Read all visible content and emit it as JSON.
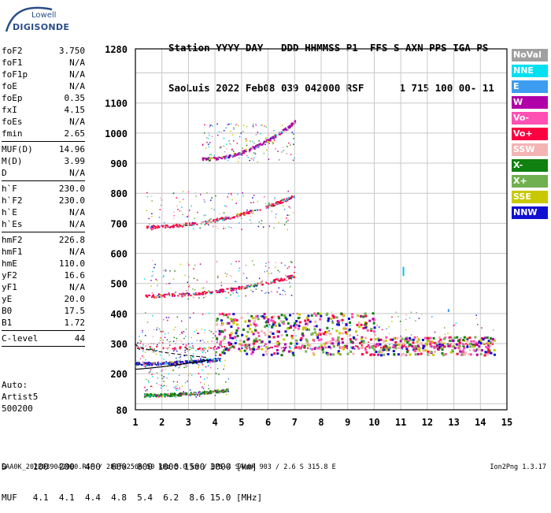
{
  "logo": {
    "line1": "Lowell",
    "line2": "DIGISONDE"
  },
  "header": {
    "line1": "Station YYYY DAY   DDD HHMMSS P1  FFS S AXN PPS IGA PS",
    "line2": "SaoLuis 2022 Feb08 039 042000 RSF      1 715 100 00- 11"
  },
  "params": [
    {
      "name": "foF2",
      "value": "3.750"
    },
    {
      "name": "foF1",
      "value": "N/A"
    },
    {
      "name": "foF1p",
      "value": "N/A"
    },
    {
      "name": "foE",
      "value": "N/A"
    },
    {
      "name": "foEp",
      "value": "0.35"
    },
    {
      "name": "fxI",
      "value": "4.15"
    },
    {
      "name": "foEs",
      "value": "N/A"
    },
    {
      "name": "fmin",
      "value": "2.65"
    },
    {
      "sep": true
    },
    {
      "name": "MUF(D)",
      "value": "14.96"
    },
    {
      "name": "M(D)",
      "value": "3.99"
    },
    {
      "name": "D",
      "value": "N/A"
    },
    {
      "sep": true
    },
    {
      "name": "h`F",
      "value": "230.0"
    },
    {
      "name": "h`F2",
      "value": "230.0"
    },
    {
      "name": "h`E",
      "value": "N/A"
    },
    {
      "name": "h`Es",
      "value": "N/A"
    },
    {
      "sep": true
    },
    {
      "name": "hmF2",
      "value": "226.8"
    },
    {
      "name": "hmF1",
      "value": "N/A"
    },
    {
      "name": "hmE",
      "value": "110.0"
    },
    {
      "name": "yF2",
      "value": "16.6"
    },
    {
      "name": "yF1",
      "value": "N/A"
    },
    {
      "name": "yE",
      "value": "20.0"
    },
    {
      "name": "B0",
      "value": "17.5"
    },
    {
      "name": "B1",
      "value": "1.72"
    },
    {
      "sep": true
    },
    {
      "name": "C-level",
      "value": "44"
    },
    {
      "sep": true
    }
  ],
  "auto": {
    "line1": "Auto:",
    "line2": "Artist5",
    "line3": "500200"
  },
  "legend": [
    {
      "label": "NoVal",
      "color": "#a0a0a0"
    },
    {
      "label": "NNE",
      "color": "#00e0f0"
    },
    {
      "label": "E",
      "color": "#3c9cf0"
    },
    {
      "label": "W",
      "color": "#b000a8"
    },
    {
      "label": "Vo-",
      "color": "#ff50b4"
    },
    {
      "label": "Vo+",
      "color": "#ff0040"
    },
    {
      "label": "SSW",
      "color": "#f4b4b4"
    },
    {
      "label": "X-",
      "color": "#108010"
    },
    {
      "label": "X+",
      "color": "#70b050"
    },
    {
      "label": "SSE",
      "color": "#c8c800"
    },
    {
      "label": "NNW",
      "color": "#1010d0"
    }
  ],
  "muf_table": {
    "d_row": "D     100  200  400  600  800 1000 1500 3000 [km]",
    "muf_row": "MUF   4.1  4.1  4.4  4.8  5.4  6.2  8.6 15.0 [MHz]"
  },
  "footer": "SAA0K_2022039042000.RSF / 280fx256h 50 kHz 5.0 km / DPS-4 SAA0K 903 / 2.6 S 315.8 E",
  "version": "Ion2Png 1.3.17",
  "chart_data": {
    "type": "scatter",
    "x_ticks": [
      "1",
      "2",
      "3",
      "4",
      "5",
      "6",
      "7",
      "8",
      "9",
      "10",
      "11",
      "12",
      "13",
      "14",
      "15"
    ],
    "y_ticks": [
      "80",
      "200",
      "300",
      "400",
      "500",
      "600",
      "700",
      "800",
      "900",
      "1000",
      "1100",
      "1280"
    ],
    "xlim": [
      1,
      15
    ],
    "ylim": [
      80,
      1280
    ],
    "grid": true,
    "traces": [
      {
        "color": "#1010d0",
        "x0": 1.0,
        "x1": 4.2,
        "y0": 235,
        "y1": 250
      },
      {
        "color": "#ff0040",
        "x0": 1.0,
        "x1": 14.5,
        "y0": 288,
        "y1": 300
      },
      {
        "color": "#ff0040",
        "x0": 1.3,
        "x1": 7.0,
        "y0": 460,
        "y1": 528
      },
      {
        "color": "#ff0040",
        "x0": 1.4,
        "x1": 7.0,
        "y0": 690,
        "y1": 793
      },
      {
        "color": "#b000a8",
        "x0": 3.5,
        "x1": 7.0,
        "y0": 915,
        "y1": 1040
      },
      {
        "color": "#108010",
        "x0": 1.3,
        "x1": 4.5,
        "y0": 130,
        "y1": 148
      }
    ]
  }
}
